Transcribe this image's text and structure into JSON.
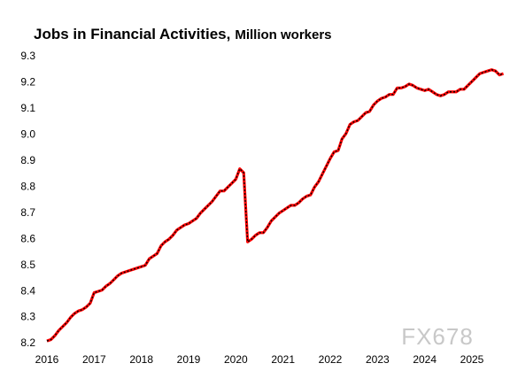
{
  "chart_data": {
    "type": "line",
    "title": "Jobs in Financial Activities,",
    "subtitle": "Million workers",
    "watermark": "FX678",
    "xlim": [
      2016,
      2025.75
    ],
    "xticks": [
      2016,
      2017,
      2018,
      2019,
      2020,
      2021,
      2022,
      2023,
      2024,
      2025
    ],
    "ylim": [
      8.2,
      9.3
    ],
    "yticks": [
      8.2,
      8.3,
      8.4,
      8.5,
      8.6,
      8.7,
      8.8,
      8.9,
      {
        "value": 9,
        "label": "9.0"
      },
      9.1,
      9.2,
      9.3
    ],
    "grid": false,
    "series": [
      {
        "color": "#ff0000",
        "x": [
          2016,
          2016.083,
          2016.167,
          2016.25,
          2016.333,
          2016.417,
          2016.5,
          2016.583,
          2016.667,
          2016.75,
          2016.833,
          2016.917,
          2017,
          2017.083,
          2017.167,
          2017.25,
          2017.333,
          2017.417,
          2017.5,
          2017.583,
          2017.667,
          2017.75,
          2017.833,
          2017.917,
          2018,
          2018.083,
          2018.167,
          2018.25,
          2018.333,
          2018.417,
          2018.5,
          2018.583,
          2018.667,
          2018.75,
          2018.833,
          2018.917,
          2019,
          2019.083,
          2019.167,
          2019.25,
          2019.333,
          2019.417,
          2019.5,
          2019.583,
          2019.667,
          2019.75,
          2019.833,
          2019.917,
          2020,
          2020.083,
          2020.167,
          2020.25,
          2020.333,
          2020.417,
          2020.5,
          2020.583,
          2020.667,
          2020.75,
          2020.833,
          2020.917,
          2021,
          2021.083,
          2021.167,
          2021.25,
          2021.333,
          2021.417,
          2021.5,
          2021.583,
          2021.667,
          2021.75,
          2021.833,
          2021.917,
          2022,
          2022.083,
          2022.167,
          2022.25,
          2022.333,
          2022.417,
          2022.5,
          2022.583,
          2022.667,
          2022.75,
          2022.833,
          2022.917,
          2023,
          2023.083,
          2023.167,
          2023.25,
          2023.333,
          2023.417,
          2023.5,
          2023.583,
          2023.667,
          2023.75,
          2023.833,
          2023.917,
          2024,
          2024.083,
          2024.167,
          2024.25,
          2024.333,
          2024.417,
          2024.5,
          2024.583,
          2024.667,
          2024.75,
          2024.833,
          2024.917,
          2025,
          2025.083,
          2025.167,
          2025.25,
          2025.333,
          2025.417,
          2025.5,
          2025.583,
          2025.667
        ],
        "values": [
          8.21,
          8.215,
          8.23,
          8.25,
          8.265,
          8.28,
          8.3,
          8.315,
          8.325,
          8.33,
          8.34,
          8.355,
          8.395,
          8.4,
          8.405,
          8.42,
          8.43,
          8.445,
          8.46,
          8.47,
          8.475,
          8.48,
          8.485,
          8.49,
          8.495,
          8.5,
          8.525,
          8.535,
          8.545,
          8.575,
          8.59,
          8.6,
          8.615,
          8.635,
          8.645,
          8.655,
          8.66,
          8.67,
          8.68,
          8.7,
          8.715,
          8.73,
          8.745,
          8.765,
          8.785,
          8.785,
          8.8,
          8.815,
          8.83,
          8.87,
          8.855,
          8.59,
          8.6,
          8.615,
          8.625,
          8.625,
          8.645,
          8.67,
          8.685,
          8.7,
          8.71,
          8.72,
          8.73,
          8.73,
          8.74,
          8.755,
          8.765,
          8.77,
          8.8,
          8.82,
          8.85,
          8.88,
          8.91,
          8.935,
          8.94,
          8.985,
          9.005,
          9.04,
          9.05,
          9.055,
          9.07,
          9.085,
          9.09,
          9.115,
          9.13,
          9.14,
          9.145,
          9.155,
          9.155,
          9.18,
          9.18,
          9.185,
          9.195,
          9.19,
          9.18,
          9.175,
          9.17,
          9.175,
          9.165,
          9.155,
          9.15,
          9.155,
          9.165,
          9.165,
          9.165,
          9.175,
          9.175,
          9.19,
          9.205,
          9.22,
          9.235,
          9.24,
          9.245,
          9.25,
          9.245,
          9.23,
          9.235
        ]
      }
    ]
  }
}
